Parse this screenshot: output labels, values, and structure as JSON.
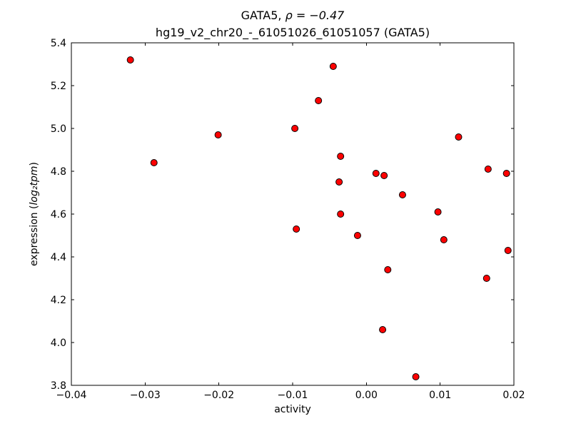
{
  "figure": {
    "title_line1_prefix": "GATA5, ",
    "title_line1_math": "ρ = −0.47",
    "title_line2": "hg19_v2_chr20_-_61051026_61051057 (GATA5)",
    "xlabel": "activity",
    "ylabel_prefix": "expression (",
    "ylabel_math": "log₂tpm",
    "ylabel_suffix": ")"
  },
  "chart_data": {
    "type": "scatter",
    "title": "GATA5, ρ = −0.47",
    "subtitle": "hg19_v2_chr20_-_61051026_61051057 (GATA5)",
    "xlabel": "activity",
    "ylabel": "expression (log2 tpm)",
    "xlim": [
      -0.04,
      0.02
    ],
    "ylim": [
      3.8,
      5.4
    ],
    "xticks": [
      -0.04,
      -0.03,
      -0.02,
      -0.01,
      0.0,
      0.01,
      0.02
    ],
    "xtick_labels": [
      "−0.04",
      "−0.03",
      "−0.02",
      "−0.01",
      "0.00",
      "0.01",
      "0.02"
    ],
    "yticks": [
      3.8,
      4.0,
      4.2,
      4.4,
      4.6,
      4.8,
      5.0,
      5.2,
      5.4
    ],
    "ytick_labels": [
      "3.8",
      "4.0",
      "4.2",
      "4.4",
      "4.6",
      "4.8",
      "5.0",
      "5.2",
      "5.4"
    ],
    "grid": false,
    "legend": null,
    "marker": {
      "shape": "circle",
      "color": "#ff0000",
      "edge_color": "#000000",
      "size": 4.5
    },
    "points": [
      [
        -0.032,
        5.32
      ],
      [
        -0.0288,
        4.84
      ],
      [
        -0.0201,
        4.97
      ],
      [
        -0.0097,
        5.0
      ],
      [
        -0.0095,
        4.53
      ],
      [
        -0.0065,
        5.13
      ],
      [
        -0.0045,
        5.29
      ],
      [
        -0.0037,
        4.75
      ],
      [
        -0.0035,
        4.87
      ],
      [
        -0.0035,
        4.6
      ],
      [
        -0.0012,
        4.5
      ],
      [
        0.0013,
        4.79
      ],
      [
        0.0024,
        4.78
      ],
      [
        0.0022,
        4.06
      ],
      [
        0.0029,
        4.34
      ],
      [
        0.0049,
        4.69
      ],
      [
        0.0067,
        3.84
      ],
      [
        0.0097,
        4.61
      ],
      [
        0.0105,
        4.48
      ],
      [
        0.0125,
        4.96
      ],
      [
        0.0163,
        4.3
      ],
      [
        0.0165,
        4.81
      ],
      [
        0.019,
        4.79
      ],
      [
        0.0192,
        4.43
      ]
    ]
  }
}
